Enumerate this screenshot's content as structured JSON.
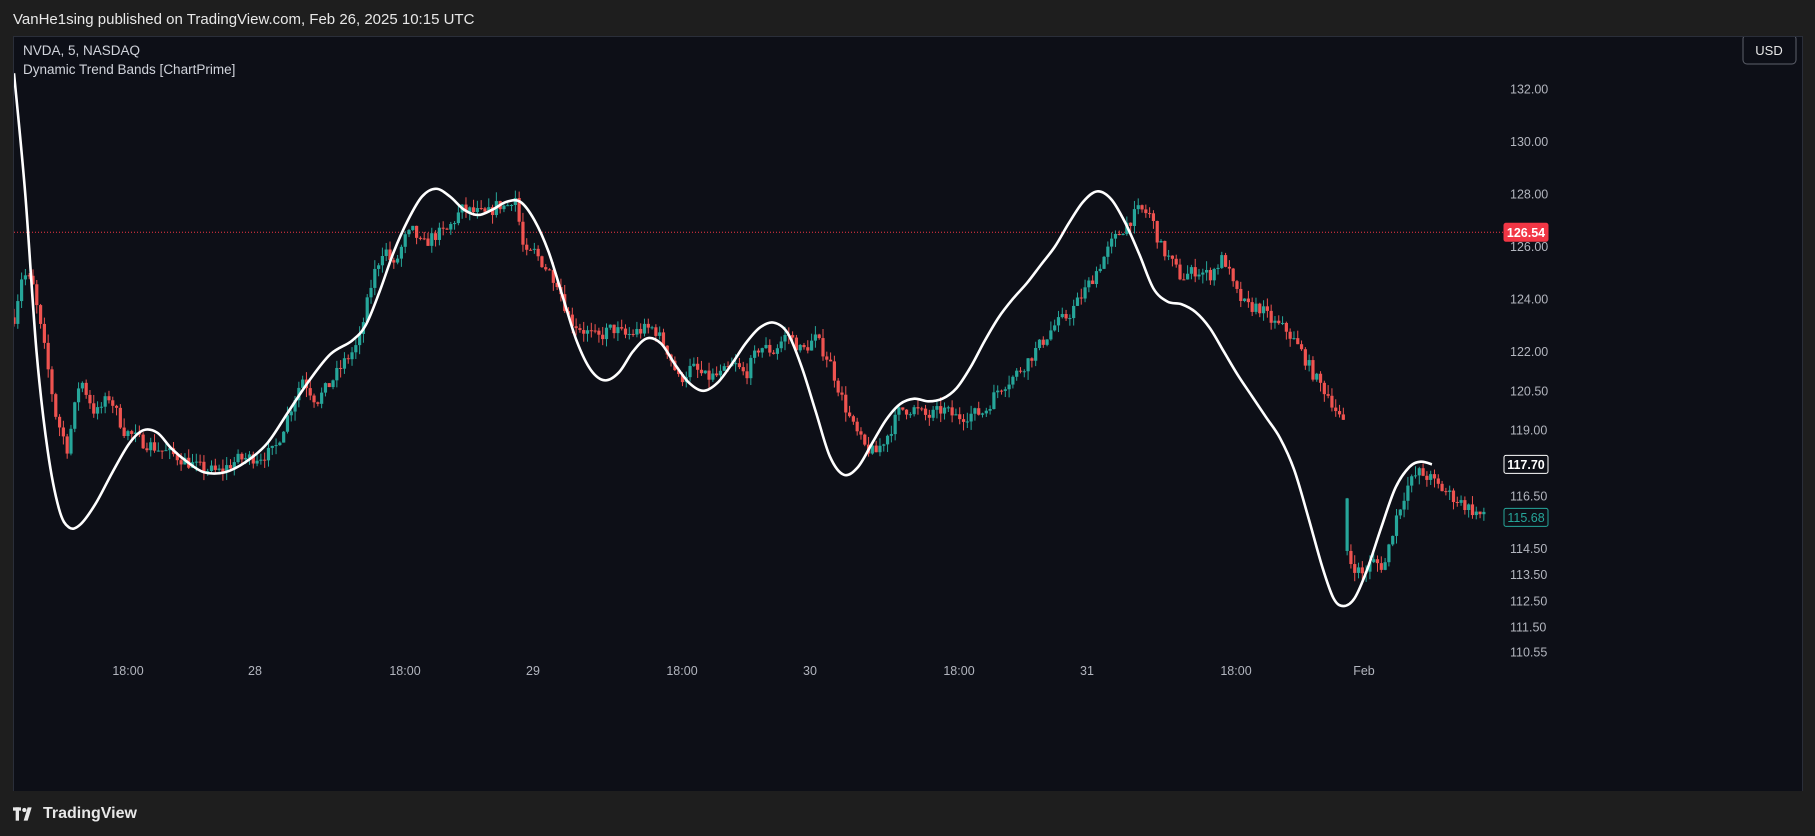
{
  "header": {
    "published_text": "VanHe1sing published on TradingView.com, Feb 26, 2025 10:15 UTC"
  },
  "legend": {
    "symbol_line": "NVDA, 5, NASDAQ",
    "indicator_line": "Dynamic Trend Bands [ChartPrime]"
  },
  "currency_button": "USD",
  "footer": {
    "brand": "TradingView"
  },
  "colors": {
    "up": "#26a69a",
    "down": "#ef5350",
    "trend_line": "#ffffff",
    "last_price_line": "#f23645",
    "background": "#0d0f17"
  },
  "chart_data": {
    "type": "candlestick",
    "symbol": "NVDA",
    "interval": "5",
    "exchange": "NASDAQ",
    "x_tick_labels": [
      "18:00",
      "28",
      "18:00",
      "29",
      "18:00",
      "30",
      "18:00",
      "31",
      "18:00",
      "Feb"
    ],
    "y_tick_labels": [
      "132.00",
      "130.00",
      "128.00",
      "126.00",
      "124.00",
      "122.00",
      "120.50",
      "119.00",
      "116.50",
      "114.50",
      "113.50",
      "112.50",
      "111.50",
      "110.55"
    ],
    "ylim": [
      110.2,
      133.3
    ],
    "price_markers": [
      {
        "label": "126.54",
        "value": 126.54,
        "style": "red"
      },
      {
        "label": "117.70",
        "value": 117.7,
        "style": "white"
      },
      {
        "label": "115.68",
        "value": 115.68,
        "style": "teal"
      }
    ],
    "last_price_line": 126.54,
    "close_path": [
      [
        0,
        123.3
      ],
      [
        0.6,
        125.0
      ],
      [
        1.3,
        124.6
      ],
      [
        2.2,
        122.0
      ],
      [
        3.0,
        119.5
      ],
      [
        3.8,
        118.3
      ],
      [
        4.7,
        121.0
      ],
      [
        5.8,
        119.6
      ],
      [
        6.8,
        120.3
      ],
      [
        7.8,
        119.0
      ],
      [
        9.0,
        118.6
      ],
      [
        10.2,
        118.3
      ],
      [
        11.6,
        118.0
      ],
      [
        13.0,
        117.6
      ],
      [
        14.5,
        117.4
      ],
      [
        16.0,
        117.9
      ],
      [
        17.5,
        118.0
      ],
      [
        18.5,
        118.2
      ],
      [
        19.5,
        119.6
      ],
      [
        20.5,
        121.0
      ],
      [
        21.5,
        120.1
      ],
      [
        22.5,
        120.8
      ],
      [
        23.5,
        121.6
      ],
      [
        24.5,
        122.3
      ],
      [
        25.5,
        124.8
      ],
      [
        26.3,
        126.0
      ],
      [
        27.0,
        125.2
      ],
      [
        27.8,
        126.3
      ],
      [
        28.4,
        126.6
      ],
      [
        29.0,
        126.0
      ],
      [
        29.8,
        126.4
      ],
      [
        30.8,
        126.6
      ],
      [
        31.8,
        127.4
      ],
      [
        32.8,
        127.3
      ],
      [
        33.6,
        127.2
      ],
      [
        34.4,
        127.6
      ],
      [
        35.0,
        127.5
      ],
      [
        35.6,
        128.0
      ],
      [
        36.3,
        125.6
      ],
      [
        37.0,
        125.8
      ],
      [
        37.8,
        125.2
      ],
      [
        38.6,
        124.7
      ],
      [
        39.5,
        123.2
      ],
      [
        40.5,
        122.8
      ],
      [
        41.5,
        122.5
      ],
      [
        42.5,
        122.9
      ],
      [
        43.5,
        122.6
      ],
      [
        44.5,
        122.8
      ],
      [
        45.5,
        122.9
      ],
      [
        46.5,
        122.0
      ],
      [
        47.3,
        120.9
      ],
      [
        48.2,
        121.4
      ],
      [
        49.2,
        121.0
      ],
      [
        50.2,
        121.1
      ],
      [
        51.2,
        121.5
      ],
      [
        52.0,
        121.1
      ],
      [
        53.0,
        122.2
      ],
      [
        54.0,
        122.0
      ],
      [
        55.0,
        122.7
      ],
      [
        56.0,
        122.0
      ],
      [
        57.0,
        122.5
      ],
      [
        58.0,
        121.6
      ],
      [
        58.8,
        120.3
      ],
      [
        59.6,
        119.2
      ],
      [
        60.4,
        118.4
      ],
      [
        61.2,
        118.1
      ],
      [
        62.2,
        118.9
      ],
      [
        63.0,
        119.8
      ],
      [
        64.0,
        119.8
      ],
      [
        65.0,
        119.5
      ],
      [
        66.0,
        119.8
      ],
      [
        67.0,
        119.5
      ],
      [
        68.0,
        119.6
      ],
      [
        69.0,
        119.7
      ],
      [
        70.0,
        120.6
      ],
      [
        71.0,
        121.0
      ],
      [
        72.0,
        121.6
      ],
      [
        73.0,
        122.3
      ],
      [
        74.0,
        123.0
      ],
      [
        75.0,
        123.4
      ],
      [
        76.0,
        124.2
      ],
      [
        77.0,
        125.1
      ],
      [
        78.0,
        126.1
      ],
      [
        79.0,
        126.8
      ],
      [
        80.0,
        127.4
      ],
      [
        80.8,
        127.2
      ],
      [
        81.5,
        126.0
      ],
      [
        82.3,
        125.4
      ],
      [
        83.0,
        124.8
      ],
      [
        84.0,
        125.1
      ],
      [
        85.0,
        124.9
      ],
      [
        86.0,
        125.6
      ],
      [
        86.8,
        124.3
      ],
      [
        87.6,
        123.7
      ],
      [
        88.5,
        123.7
      ],
      [
        89.5,
        123.1
      ],
      [
        90.5,
        122.8
      ],
      [
        91.5,
        122.0
      ],
      [
        92.5,
        121.0
      ],
      [
        93.5,
        120.3
      ],
      [
        94.5,
        119.2
      ],
      [
        95.0,
        114.0
      ],
      [
        95.8,
        113.5
      ],
      [
        96.6,
        114.0
      ],
      [
        97.4,
        113.8
      ],
      [
        98.2,
        115.6
      ],
      [
        99.0,
        116.8
      ],
      [
        99.8,
        117.4
      ],
      [
        100.6,
        117.2
      ],
      [
        101.4,
        116.8
      ],
      [
        102.2,
        116.5
      ],
      [
        103.0,
        116.2
      ],
      [
        103.8,
        115.9
      ],
      [
        104.5,
        115.68
      ]
    ],
    "trend_line": [
      [
        0,
        132.6
      ],
      [
        0.8,
        128.0
      ],
      [
        1.6,
        122.0
      ],
      [
        2.4,
        118.2
      ],
      [
        3.2,
        116.0
      ],
      [
        3.9,
        115.3
      ],
      [
        4.7,
        115.4
      ],
      [
        5.8,
        116.2
      ],
      [
        7.0,
        117.4
      ],
      [
        8.2,
        118.5
      ],
      [
        9.2,
        119.0
      ],
      [
        10.2,
        118.9
      ],
      [
        11.2,
        118.3
      ],
      [
        12.3,
        117.8
      ],
      [
        13.5,
        117.4
      ],
      [
        15.0,
        117.4
      ],
      [
        16.5,
        117.8
      ],
      [
        18.0,
        118.5
      ],
      [
        19.5,
        119.7
      ],
      [
        21.0,
        120.9
      ],
      [
        22.5,
        121.9
      ],
      [
        24.0,
        122.4
      ],
      [
        25.0,
        123.0
      ],
      [
        26.0,
        124.3
      ],
      [
        27.0,
        125.8
      ],
      [
        28.0,
        127.0
      ],
      [
        29.0,
        127.9
      ],
      [
        30.0,
        128.2
      ],
      [
        31.0,
        127.9
      ],
      [
        32.0,
        127.4
      ],
      [
        33.0,
        127.2
      ],
      [
        34.0,
        127.4
      ],
      [
        35.0,
        127.7
      ],
      [
        36.0,
        127.7
      ],
      [
        37.0,
        127.0
      ],
      [
        38.0,
        125.8
      ],
      [
        39.0,
        124.1
      ],
      [
        40.0,
        122.4
      ],
      [
        41.0,
        121.3
      ],
      [
        42.0,
        120.9
      ],
      [
        43.0,
        121.2
      ],
      [
        44.0,
        122.0
      ],
      [
        45.0,
        122.5
      ],
      [
        46.0,
        122.3
      ],
      [
        47.0,
        121.5
      ],
      [
        48.0,
        120.8
      ],
      [
        49.0,
        120.5
      ],
      [
        50.0,
        120.8
      ],
      [
        51.0,
        121.5
      ],
      [
        52.0,
        122.3
      ],
      [
        53.0,
        122.9
      ],
      [
        54.0,
        123.1
      ],
      [
        55.0,
        122.7
      ],
      [
        56.0,
        121.4
      ],
      [
        57.0,
        119.7
      ],
      [
        58.0,
        118.0
      ],
      [
        59.0,
        117.3
      ],
      [
        60.0,
        117.6
      ],
      [
        61.0,
        118.5
      ],
      [
        62.0,
        119.4
      ],
      [
        63.0,
        120.0
      ],
      [
        64.0,
        120.2
      ],
      [
        65.0,
        120.1
      ],
      [
        66.0,
        120.2
      ],
      [
        67.0,
        120.6
      ],
      [
        68.0,
        121.4
      ],
      [
        69.0,
        122.4
      ],
      [
        70.0,
        123.3
      ],
      [
        71.0,
        124.0
      ],
      [
        72.0,
        124.6
      ],
      [
        73.0,
        125.3
      ],
      [
        74.0,
        126.0
      ],
      [
        75.0,
        126.9
      ],
      [
        76.0,
        127.7
      ],
      [
        77.0,
        128.1
      ],
      [
        78.0,
        127.8
      ],
      [
        79.0,
        126.9
      ],
      [
        80.0,
        125.7
      ],
      [
        81.0,
        124.4
      ],
      [
        82.0,
        123.9
      ],
      [
        83.0,
        123.8
      ],
      [
        84.0,
        123.5
      ],
      [
        85.0,
        122.9
      ],
      [
        86.0,
        122.0
      ],
      [
        87.0,
        121.1
      ],
      [
        88.0,
        120.3
      ],
      [
        89.0,
        119.5
      ],
      [
        90.0,
        118.7
      ],
      [
        91.0,
        117.5
      ],
      [
        92.0,
        115.7
      ],
      [
        93.0,
        113.8
      ],
      [
        93.8,
        112.6
      ],
      [
        94.5,
        112.3
      ],
      [
        95.3,
        112.6
      ],
      [
        96.2,
        113.7
      ],
      [
        97.2,
        115.3
      ],
      [
        98.2,
        116.8
      ],
      [
        99.2,
        117.6
      ],
      [
        100.0,
        117.8
      ],
      [
        100.8,
        117.7
      ]
    ]
  }
}
